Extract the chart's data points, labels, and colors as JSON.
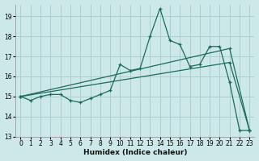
{
  "xlabel": "Humidex (Indice chaleur)",
  "bg_color": "#cce8e8",
  "grid_color": "#aacece",
  "line_color": "#1a6b5a",
  "xlim": [
    -0.5,
    23.5
  ],
  "ylim": [
    13.0,
    19.6
  ],
  "yticks": [
    13,
    14,
    15,
    16,
    17,
    18,
    19
  ],
  "xticks": [
    0,
    1,
    2,
    3,
    4,
    5,
    6,
    7,
    8,
    9,
    10,
    11,
    12,
    13,
    14,
    15,
    16,
    17,
    18,
    19,
    20,
    21,
    22,
    23
  ],
  "series1_x": [
    0,
    1,
    2,
    3,
    4,
    5,
    6,
    7,
    8,
    9,
    10,
    11,
    12,
    13,
    14,
    15,
    16,
    17,
    18,
    19,
    20,
    21,
    22,
    23
  ],
  "series1_y": [
    15.0,
    14.8,
    15.0,
    15.1,
    15.1,
    14.8,
    14.7,
    14.9,
    15.1,
    15.3,
    16.6,
    16.3,
    16.4,
    18.0,
    19.4,
    17.8,
    17.6,
    16.5,
    16.6,
    17.5,
    17.5,
    15.7,
    13.3,
    13.3
  ],
  "series2_x": [
    0,
    21,
    23
  ],
  "series2_y": [
    15.0,
    17.4,
    13.3
  ],
  "series3_x": [
    0,
    21,
    23
  ],
  "series3_y": [
    15.0,
    16.7,
    13.3
  ]
}
